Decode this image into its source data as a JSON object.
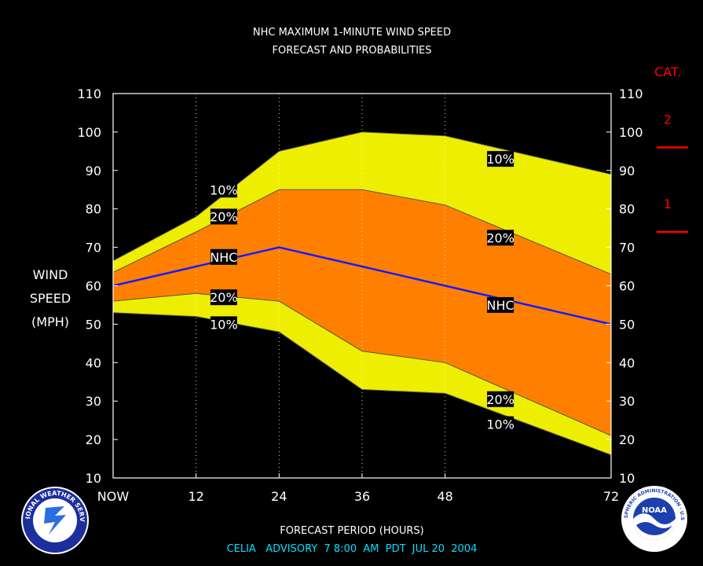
{
  "chart_data": {
    "type": "area",
    "title": "NHC MAXIMUM 1-MINUTE WIND SPEED",
    "subtitle": "FORECAST AND PROBABILITIES",
    "ylabel_lines": [
      "WIND",
      "SPEED",
      "(MPH)"
    ],
    "xlabel": "FORECAST PERIOD (HOURS)",
    "advisory": "CELIA   ADVISORY  7 8:00  AM  PDT  JUL 20  2004",
    "x_ticks": [
      {
        "value": 0,
        "label": "NOW"
      },
      {
        "value": 12,
        "label": "12"
      },
      {
        "value": 24,
        "label": "24"
      },
      {
        "value": 36,
        "label": "36"
      },
      {
        "value": 48,
        "label": "48"
      },
      {
        "value": 72,
        "label": "72"
      }
    ],
    "y_ticks": [
      "10",
      "20",
      "30",
      "40",
      "50",
      "60",
      "70",
      "80",
      "90",
      "100",
      "110"
    ],
    "xlim": [
      0,
      72
    ],
    "ylim": [
      10,
      110
    ],
    "grid": "vertical dotted at 12, 24, 36, 48",
    "x": [
      0,
      12,
      24,
      36,
      48,
      72
    ],
    "series": [
      {
        "name": "10%",
        "role": "upper_10",
        "values": [
          66.5,
          78,
          95,
          100,
          99,
          89
        ]
      },
      {
        "name": "20%",
        "role": "upper_20",
        "values": [
          63.5,
          74,
          85,
          85,
          81,
          63
        ]
      },
      {
        "name": "NHC",
        "role": "nhc",
        "values": [
          60,
          65,
          70,
          65,
          60,
          50
        ]
      },
      {
        "name": "20%",
        "role": "lower_20",
        "values": [
          56,
          58,
          56,
          43,
          40,
          21
        ]
      },
      {
        "name": "10%",
        "role": "lower_10",
        "values": [
          53,
          52,
          48,
          33,
          32,
          16
        ]
      }
    ],
    "series_labels": [
      {
        "text": "10%",
        "x": 16,
        "y": 85
      },
      {
        "text": "20%",
        "x": 16,
        "y": 78
      },
      {
        "text": "NHC",
        "x": 16,
        "y": 67.5
      },
      {
        "text": "20%",
        "x": 16,
        "y": 57
      },
      {
        "text": "10%",
        "x": 16,
        "y": 50
      },
      {
        "text": "10%",
        "x": 56,
        "y": 93
      },
      {
        "text": "20%",
        "x": 56,
        "y": 72.5
      },
      {
        "text": "NHC",
        "x": 56,
        "y": 55
      },
      {
        "text": "20%",
        "x": 56,
        "y": 30.5
      },
      {
        "text": "10%",
        "x": 56,
        "y": 24
      }
    ],
    "category_panel": {
      "title": "CAT.",
      "categories": [
        {
          "label": "2",
          "boundary_mph": 96
        },
        {
          "label": "1",
          "boundary_mph": 74
        }
      ]
    },
    "colors": {
      "outer_band": "#eeee00",
      "inner_band": "#ff8000",
      "nhc_line": "#1a1aff",
      "title_text": "#ffffff",
      "advisory_text": "#00e0ff",
      "category": "#ff0000"
    }
  },
  "logos": {
    "left": "NATIONAL WEATHER SERVICE",
    "right_center": "NOAA",
    "right_ring": "NATIONAL OCEANIC AND ATMOSPHERIC ADMINISTRATION · U.S. DEPARTMENT OF COMMERCE"
  }
}
